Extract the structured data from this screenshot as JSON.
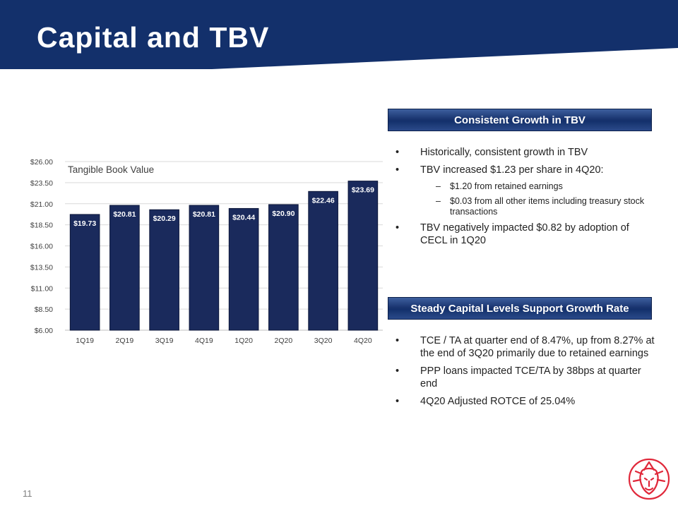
{
  "header": {
    "title": "Capital and TBV"
  },
  "chart_data": {
    "type": "bar",
    "title": "Tangible Book Value",
    "categories": [
      "1Q19",
      "2Q19",
      "3Q19",
      "4Q19",
      "1Q20",
      "2Q20",
      "3Q20",
      "4Q20"
    ],
    "values": [
      19.73,
      20.81,
      20.29,
      20.81,
      20.44,
      20.9,
      22.46,
      23.69
    ],
    "value_labels": [
      "$19.73",
      "$20.81",
      "$20.29",
      "$20.81",
      "$20.44",
      "$20.90",
      "$22.46",
      "$23.69"
    ],
    "ylim": [
      6,
      26
    ],
    "yticks": [
      6,
      8.5,
      11,
      13.5,
      16,
      18.5,
      21,
      23.5,
      26
    ],
    "ytick_labels": [
      "$6.00",
      "$8.50",
      "$11.00",
      "$13.50",
      "$16.00",
      "$18.50",
      "$21.00",
      "$23.50",
      "$26.00"
    ],
    "grid": true,
    "bar_color": "#1a2a5c"
  },
  "section1": {
    "heading": "Consistent Growth in TBV",
    "bullets": [
      "Historically, consistent growth in TBV",
      "TBV increased $1.23 per share in 4Q20:"
    ],
    "subbullets": [
      "$1.20 from retained earnings",
      "$0.03 from all other items including treasury stock transactions"
    ],
    "bullet_last": "TBV negatively impacted $0.82 by adoption of CECL in 1Q20"
  },
  "section2": {
    "heading": "Steady Capital Levels Support Growth Rate",
    "bullets": [
      "TCE / TA at quarter end of 8.47%, up from 8.27% at the end of 3Q20 primarily due to retained earnings",
      "PPP loans impacted TCE/TA by 38bps at quarter end",
      "4Q20 Adjusted ROTCE of 25.04%"
    ]
  },
  "symbols": {
    "bullet": "•",
    "dash": "–"
  },
  "footer": {
    "page_number": "11"
  },
  "colors": {
    "brand_navy": "#13306b",
    "logo_red": "#e0283a"
  },
  "icons": {
    "logo": "lion-logo-icon"
  }
}
